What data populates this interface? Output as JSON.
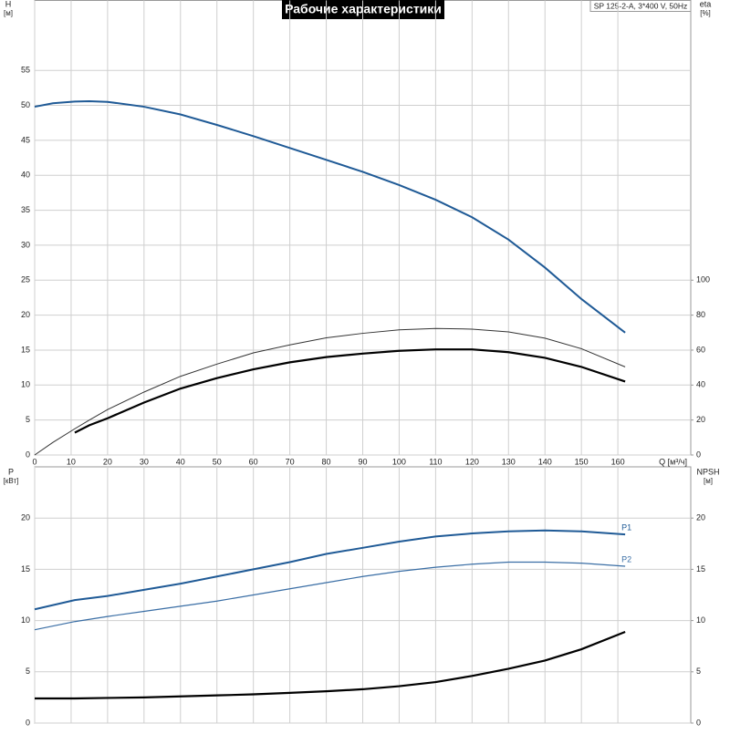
{
  "chart_data": [
    {
      "type": "line",
      "title": "Рабочие характеристики",
      "subtitle": "SP 125-2-A, 3*400 V, 50Hz",
      "xlabel": "Q [м³/ч]",
      "ylabel": "H",
      "ylabel_unit": "[м]",
      "y2label": "eta",
      "y2label_unit": "[%]",
      "xlim": [
        0,
        180
      ],
      "xticks": [
        0,
        10,
        20,
        30,
        40,
        50,
        60,
        70,
        80,
        90,
        100,
        110,
        120,
        130,
        140,
        150,
        160
      ],
      "ylim": [
        0,
        65
      ],
      "yticks": [
        0,
        5,
        10,
        15,
        20,
        25,
        30,
        35,
        40,
        45,
        50,
        55
      ],
      "y2lim": [
        0,
        260
      ],
      "y2ticks": [
        0,
        20,
        40,
        60,
        80,
        100
      ],
      "grid": true,
      "x": [
        0,
        5,
        11,
        15,
        20,
        30,
        40,
        50,
        60,
        70,
        80,
        90,
        100,
        110,
        120,
        130,
        140,
        150,
        162
      ],
      "series": [
        {
          "color": "#1f5a96",
          "width": 2,
          "values": [
            49.8,
            50.3,
            50.55,
            50.6,
            50.5,
            49.8,
            48.7,
            47.2,
            45.6,
            43.9,
            42.2,
            40.5,
            38.6,
            36.5,
            34.0,
            30.8,
            26.8,
            22.3,
            17.5
          ]
        },
        {
          "color": "#333333",
          "width": 1,
          "axis": "y2",
          "values": [
            0,
            7.2,
            15,
            20,
            26,
            36,
            45,
            52,
            58.4,
            63,
            67,
            69.6,
            71.6,
            72.4,
            72,
            70.4,
            66.8,
            60.8,
            50.4
          ]
        },
        {
          "color": "#000000",
          "width": 2.2,
          "axis": "y2",
          "values": [
            null,
            null,
            12.8,
            17,
            21,
            30,
            38,
            44,
            49,
            53,
            56,
            58,
            59.6,
            60.4,
            60.4,
            58.8,
            55.6,
            50.4,
            42
          ]
        }
      ]
    },
    {
      "type": "line",
      "ylabel": "P",
      "ylabel_unit": "[кВт]",
      "y2label": "NPSH",
      "y2label_unit": "[м]",
      "xlim": [
        0,
        180
      ],
      "ylim": [
        0,
        25
      ],
      "yticks": [
        0,
        5,
        10,
        15,
        20
      ],
      "y2lim": [
        0,
        25
      ],
      "y2ticks": [
        0,
        5,
        10,
        15,
        20
      ],
      "grid": true,
      "x": [
        0,
        11,
        20,
        30,
        40,
        50,
        60,
        70,
        80,
        90,
        100,
        110,
        120,
        130,
        140,
        150,
        162
      ],
      "series": [
        {
          "name": "P1",
          "color": "#1f5a96",
          "width": 2,
          "values": [
            11.1,
            12.0,
            12.4,
            13.0,
            13.6,
            14.3,
            15.0,
            15.7,
            16.5,
            17.1,
            17.7,
            18.2,
            18.5,
            18.7,
            18.8,
            18.7,
            18.4
          ]
        },
        {
          "name": "P2",
          "color": "#3a6ea5",
          "width": 1.2,
          "values": [
            9.1,
            9.9,
            10.4,
            10.9,
            11.4,
            11.9,
            12.5,
            13.1,
            13.7,
            14.3,
            14.8,
            15.2,
            15.5,
            15.7,
            15.7,
            15.6,
            15.3
          ]
        },
        {
          "color": "#000000",
          "width": 2.2,
          "axis": "y2",
          "values": [
            2.4,
            2.4,
            2.45,
            2.5,
            2.6,
            2.7,
            2.8,
            2.95,
            3.1,
            3.3,
            3.6,
            4.0,
            4.6,
            5.3,
            6.1,
            7.2,
            8.9
          ]
        }
      ]
    }
  ]
}
